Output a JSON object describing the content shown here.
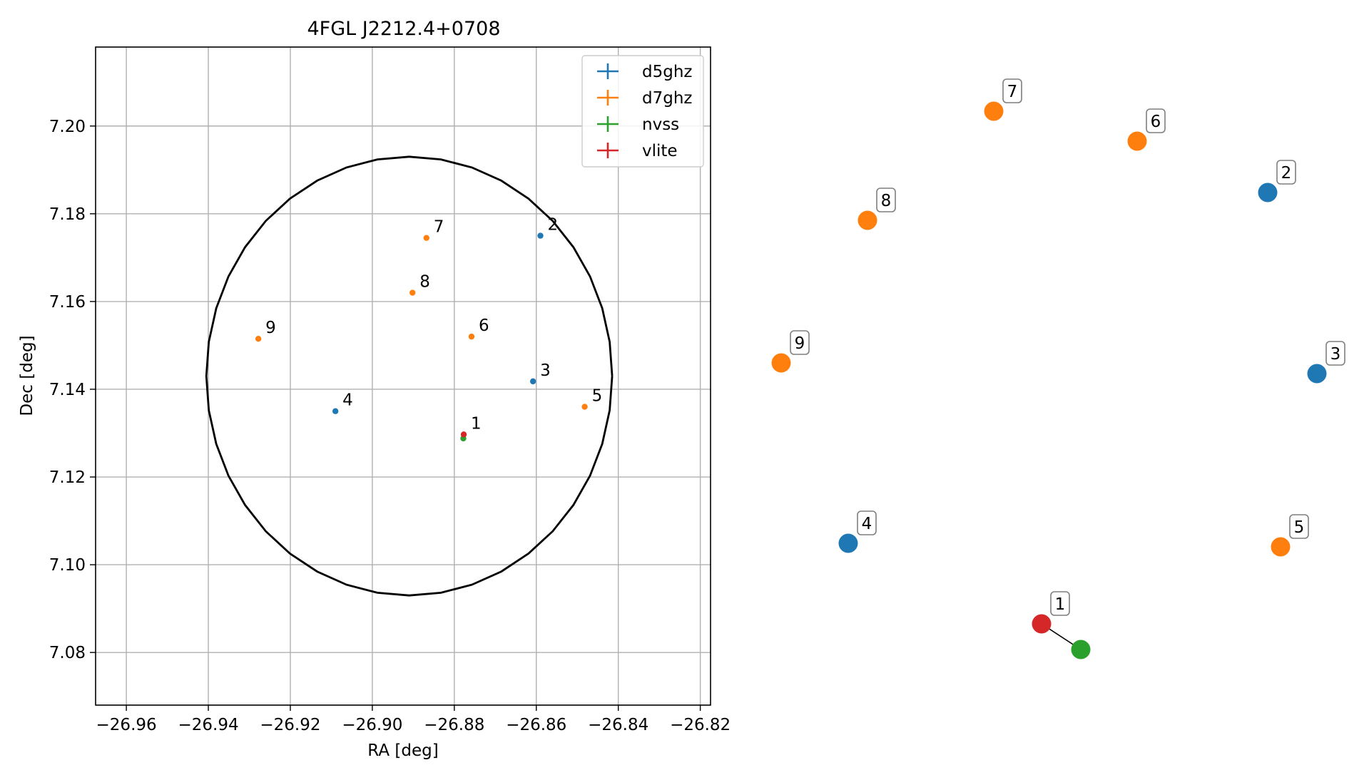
{
  "chart_data": [
    {
      "type": "scatter",
      "title": "4FGL J2212.4+0708",
      "xlabel": "RA [deg]",
      "ylabel": "Dec [deg]",
      "xlim": [
        -26.9675,
        -26.8175
      ],
      "ylim": [
        7.068,
        7.218
      ],
      "xticks": [
        -26.96,
        -26.94,
        -26.92,
        -26.9,
        -26.88,
        -26.86,
        -26.84,
        -26.82
      ],
      "xtick_labels": [
        "−26.96",
        "−26.94",
        "−26.92",
        "−26.90",
        "−26.88",
        "−26.86",
        "−26.84",
        "−26.82"
      ],
      "yticks": [
        7.08,
        7.1,
        7.12,
        7.14,
        7.16,
        7.18,
        7.2
      ],
      "ytick_labels": [
        "7.08",
        "7.10",
        "7.12",
        "7.14",
        "7.16",
        "7.18",
        "7.20"
      ],
      "grid": true,
      "legend_position": "top-right",
      "circle": {
        "center": [
          -26.891,
          7.143
        ],
        "radius_ra": 0.0495,
        "radius_dec": 0.05,
        "color": "#000000"
      },
      "series": [
        {
          "name": "d5ghz",
          "color": "#1f77b4",
          "points": [
            {
              "label": "2",
              "ra": -26.859,
              "dec": 7.175
            },
            {
              "label": "3",
              "ra": -26.8608,
              "dec": 7.1418
            },
            {
              "label": "4",
              "ra": -26.909,
              "dec": 7.135
            }
          ]
        },
        {
          "name": "d7ghz",
          "color": "#ff7f0e",
          "points": [
            {
              "label": "5",
              "ra": -26.8482,
              "dec": 7.136
            },
            {
              "label": "6",
              "ra": -26.8758,
              "dec": 7.152
            },
            {
              "label": "7",
              "ra": -26.8868,
              "dec": 7.1745
            },
            {
              "label": "8",
              "ra": -26.8902,
              "dec": 7.162
            },
            {
              "label": "9",
              "ra": -26.9278,
              "dec": 7.1515
            }
          ]
        },
        {
          "name": "nvss",
          "color": "#2ca02c",
          "points": [
            {
              "label": "",
              "ra": -26.8778,
              "dec": 7.1288
            }
          ]
        },
        {
          "name": "vlite",
          "color": "#d62728",
          "points": [
            {
              "label": "1",
              "ra": -26.8777,
              "dec": 7.1297
            }
          ]
        }
      ]
    },
    {
      "type": "scatter",
      "title": "",
      "axes": "off",
      "nodes": [
        {
          "label": "7",
          "color": "#ff7f0e"
        },
        {
          "label": "6",
          "color": "#ff7f0e"
        },
        {
          "label": "2",
          "color": "#1f77b4"
        },
        {
          "label": "8",
          "color": "#ff7f0e"
        },
        {
          "label": "9",
          "color": "#ff7f0e"
        },
        {
          "label": "3",
          "color": "#1f77b4"
        },
        {
          "label": "4",
          "color": "#1f77b4"
        },
        {
          "label": "5",
          "color": "#ff7f0e"
        },
        {
          "label": "1",
          "color": "#d62728"
        },
        {
          "label": "",
          "color": "#2ca02c"
        }
      ],
      "edges": [
        [
          "1",
          ""
        ]
      ]
    }
  ]
}
